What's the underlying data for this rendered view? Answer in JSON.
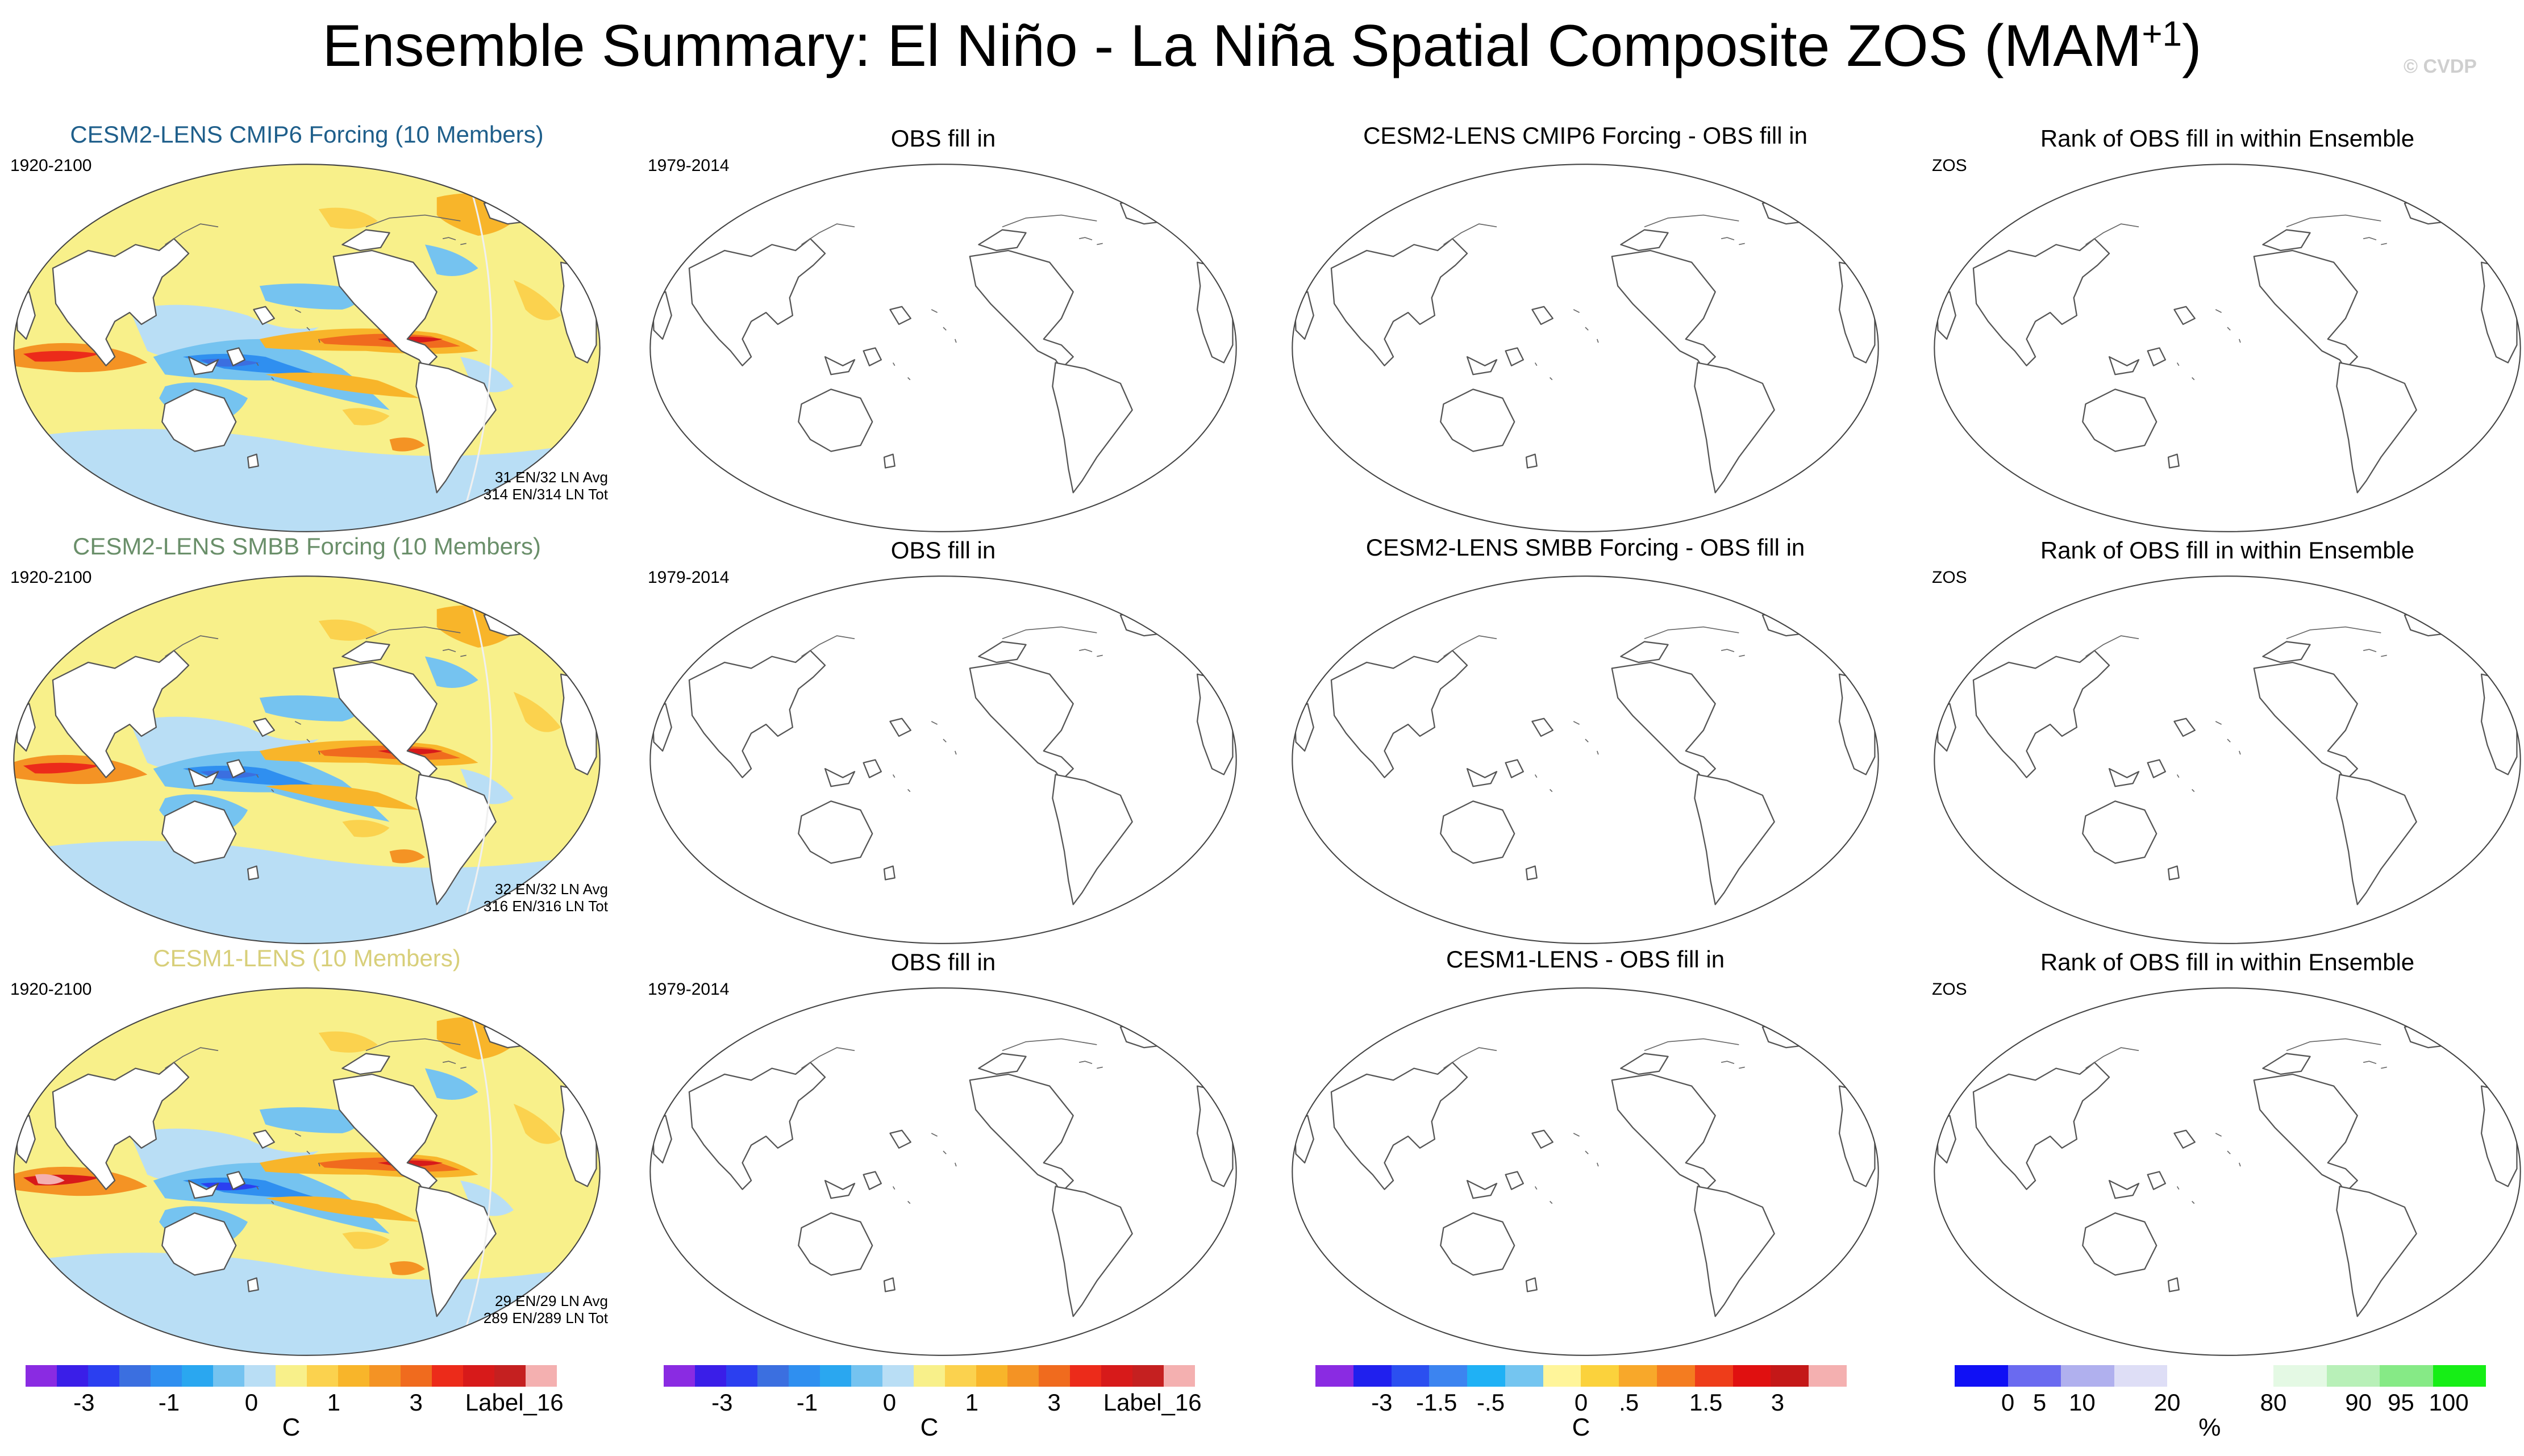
{
  "title": {
    "main": "Ensemble Summary: El Niño - La Niña Spatial Composite ZOS (MAM",
    "sup": "+1",
    "close": ")"
  },
  "watermark": "© CVDP",
  "rows": [
    {
      "model_title": "CESM2-LENS CMIP6 Forcing (10 Members)",
      "model_color": "#1f5f8b",
      "model_years": "1920-2100",
      "counts_avg": "31 EN/32 LN Avg",
      "counts_tot": "314 EN/314 LN Tot",
      "obs_title": "OBS fill in",
      "obs_years": "1979-2014",
      "diff_title": "CESM2-LENS CMIP6 Forcing - OBS fill in",
      "rank_title": "Rank of OBS fill in within Ensemble",
      "rank_var": "ZOS"
    },
    {
      "model_title": "CESM2-LENS SMBB Forcing (10 Members)",
      "model_color": "#6a8f6a",
      "model_years": "1920-2100",
      "counts_avg": "32 EN/32 LN Avg",
      "counts_tot": "316 EN/316 LN Tot",
      "obs_title": "OBS fill in",
      "obs_years": "1979-2014",
      "diff_title": "CESM2-LENS SMBB Forcing - OBS fill in",
      "rank_title": "Rank of OBS fill in within Ensemble",
      "rank_var": "ZOS"
    },
    {
      "model_title": "CESM1-LENS (10 Members)",
      "model_color": "#d8cf7a",
      "model_years": "1920-2100",
      "counts_avg": "29 EN/29 LN Avg",
      "counts_tot": "289 EN/289 LN Tot",
      "obs_title": "OBS fill in",
      "obs_years": "1979-2014",
      "diff_title": "CESM1-LENS - OBS fill in",
      "rank_title": "Rank of OBS fill in within Ensemble",
      "rank_var": "ZOS"
    }
  ],
  "colorbars": [
    {
      "colors": [
        "#8a2be2",
        "#3a1ee8",
        "#2b3ff0",
        "#3b6fe0",
        "#2f8ff0",
        "#2aa7f0",
        "#75c3f0",
        "#b9def5",
        "#f8f08a",
        "#fbd24e",
        "#f8b52a",
        "#f49324",
        "#f06b1e",
        "#ec2b1a",
        "#d71a1a",
        "#c52020",
        "#f4b0b0"
      ],
      "labels": [
        "-3",
        "-1",
        "0",
        "1",
        "3",
        "Label_16"
      ],
      "unit": "C"
    },
    {
      "colors": [
        "#8a2be2",
        "#3a1ee8",
        "#2b3ff0",
        "#3b6fe0",
        "#2f8ff0",
        "#2aa7f0",
        "#75c3f0",
        "#b9def5",
        "#f8f08a",
        "#fbd24e",
        "#f8b52a",
        "#f49324",
        "#f06b1e",
        "#ec2b1a",
        "#d71a1a",
        "#c52020",
        "#f4b0b0"
      ],
      "labels": [
        "-3",
        "-1",
        "0",
        "1",
        "3",
        "Label_16"
      ],
      "unit": "C"
    },
    {
      "colors": [
        "#8a2be2",
        "#2020ee",
        "#2b4ff0",
        "#3c84f0",
        "#1fb1f5",
        "#74c5f0",
        "#fff59a",
        "#fbd23c",
        "#f8a82a",
        "#f47c20",
        "#ee3d1a",
        "#e01010",
        "#c41818",
        "#f4b0b0"
      ],
      "labels": [
        "-3",
        "-1.5",
        "-.5",
        "0",
        ".5",
        "1.5",
        "3"
      ],
      "unit": "C"
    },
    {
      "colors": [
        "#1010f5",
        "#6a6af0",
        "#b0b0ee",
        "#dedef6",
        "#ffffff",
        "#ffffff",
        "#e4f9e4",
        "#b8f0b8",
        "#86ea86",
        "#16ee16"
      ],
      "labels": [
        "0",
        "5",
        "10",
        "20",
        "80",
        "90",
        "95",
        "100"
      ],
      "unit": "%"
    }
  ]
}
